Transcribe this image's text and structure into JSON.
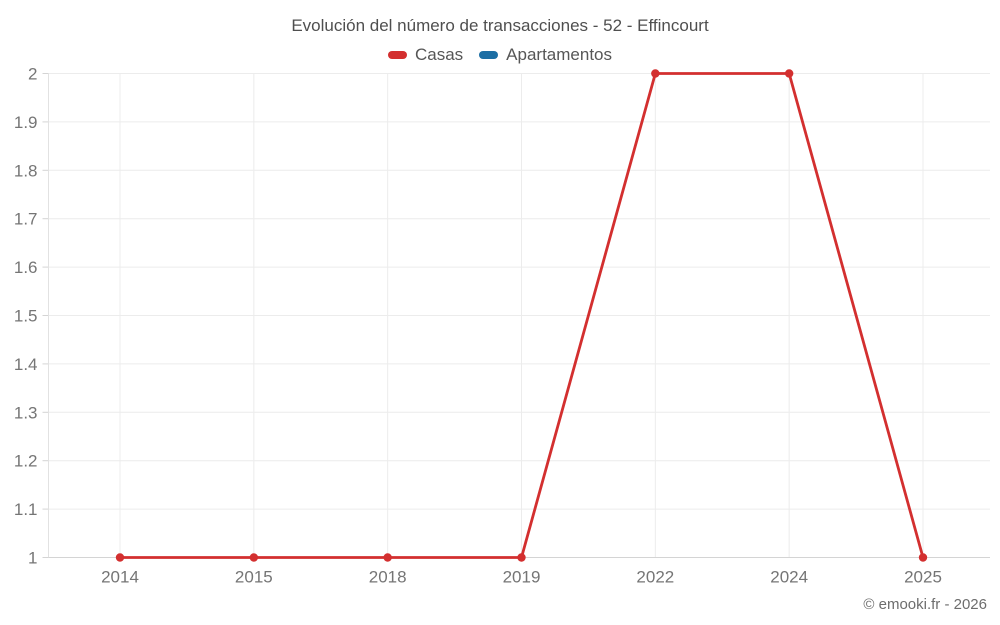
{
  "footer": {
    "copyright": "© emooki.fr - 2026"
  },
  "chart_data": {
    "type": "line",
    "title": "Evolución del número de transacciones - 52 - Effincourt",
    "categories": [
      "2014",
      "2015",
      "2018",
      "2019",
      "2022",
      "2024",
      "2025"
    ],
    "series": [
      {
        "name": "Casas",
        "color": "#d32f2f",
        "values": [
          1,
          1,
          1,
          1,
          2,
          2,
          1
        ]
      },
      {
        "name": "Apartamentos",
        "color": "#1c6ea4",
        "values": []
      }
    ],
    "xlabel": "",
    "ylabel": "",
    "ylim": [
      1,
      2
    ],
    "y_ticks": [
      1,
      1.1,
      1.2,
      1.3,
      1.4,
      1.5,
      1.6,
      1.7,
      1.8,
      1.9,
      2
    ],
    "grid": true,
    "legend_position": "top",
    "colors": {
      "gridline": "#ececec",
      "y_axis_line": "#e2e2e2",
      "x_axis_line": "#d4d4d4",
      "tick_label": "#757575"
    }
  }
}
